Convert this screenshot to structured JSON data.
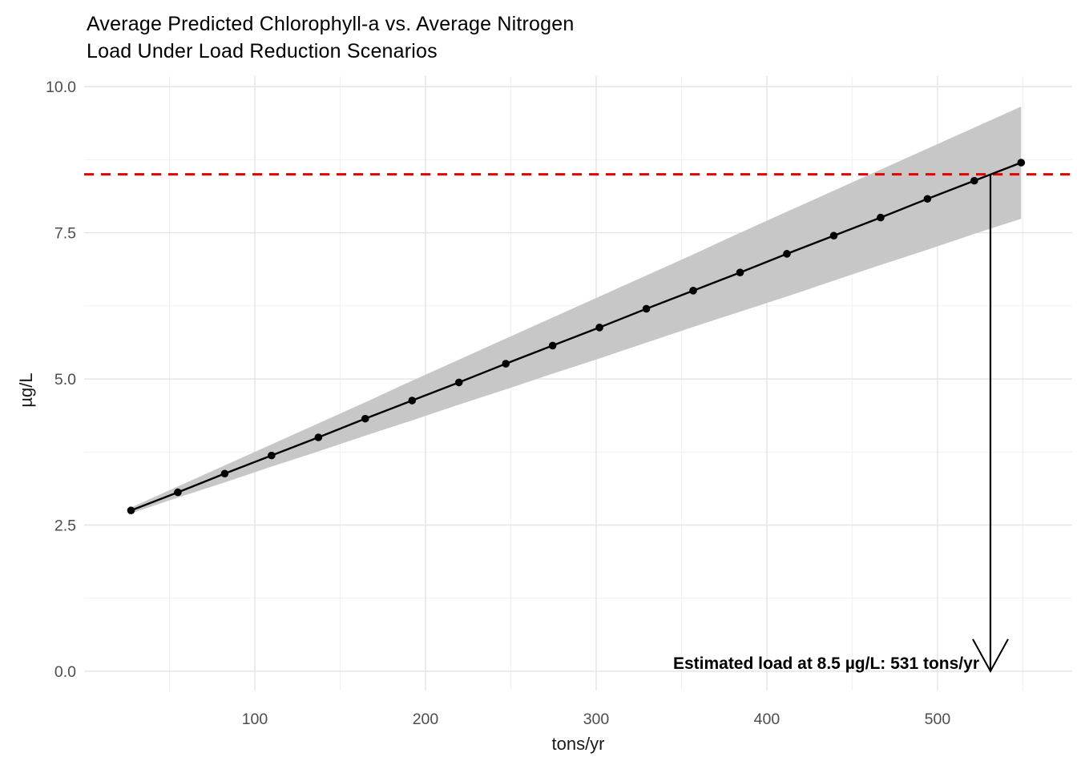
{
  "title": {
    "line1": "Average Predicted Chlorophyll-a vs. Average Nitrogen",
    "line2": "Load Under Load Reduction Scenarios"
  },
  "axes": {
    "x_label": "tons/yr",
    "y_label": "µg/L"
  },
  "annotation": {
    "text": "Estimated load at 8.5 µg/L: 531 tons/yr"
  },
  "colors": {
    "line": "#000000",
    "point": "#000000",
    "ribbon": "#c7c7c7",
    "reference_line": "#e60000",
    "grid_major": "#e4e4e4",
    "grid_minor": "#f1f1f1",
    "tick_text": "#4d4d4d",
    "arrow": "#000000",
    "background": "#ffffff"
  },
  "chart_data": {
    "type": "line",
    "title": "Average Predicted Chlorophyll-a vs. Average Nitrogen Load Under Load Reduction Scenarios",
    "xlabel": "tons/yr",
    "ylabel": "µg/L",
    "xlim": [
      0,
      578.9
    ],
    "ylim": [
      -0.33,
      10.18
    ],
    "grid": true,
    "legend": false,
    "x_major_ticks": [
      100,
      200,
      300,
      400,
      500
    ],
    "x_tick_labels": [
      "100",
      "200",
      "300",
      "400",
      "500"
    ],
    "x_minor_ticks": [
      50,
      150,
      250,
      350,
      450,
      550
    ],
    "y_major_ticks": [
      0.0,
      2.5,
      5.0,
      7.5,
      10.0
    ],
    "y_tick_labels": [
      "0.0",
      "2.5",
      "5.0",
      "7.5",
      "10.0"
    ],
    "y_minor_ticks": [
      1.25,
      3.75,
      6.25,
      8.75
    ],
    "series": [
      {
        "name": "predicted-chlorophyll-a",
        "x": [
          27.45,
          54.9,
          82.35,
          109.8,
          137.25,
          164.7,
          192.15,
          219.6,
          247.05,
          274.5,
          301.95,
          329.4,
          356.85,
          384.3,
          411.75,
          439.2,
          466.65,
          494.1,
          521.55,
          549.0
        ],
        "y": [
          2.75,
          3.06,
          3.38,
          3.69,
          4.0,
          4.32,
          4.63,
          4.94,
          5.26,
          5.57,
          5.88,
          6.2,
          6.51,
          6.82,
          7.14,
          7.45,
          7.76,
          8.08,
          8.39,
          8.7
        ],
        "ci_lower": [
          2.7,
          2.97,
          3.23,
          3.5,
          3.76,
          4.03,
          4.29,
          4.56,
          4.82,
          5.09,
          5.35,
          5.62,
          5.89,
          6.15,
          6.41,
          6.68,
          6.95,
          7.21,
          7.48,
          7.74
        ],
        "ci_upper": [
          2.8,
          3.16,
          3.52,
          3.88,
          4.24,
          4.6,
          4.97,
          5.33,
          5.69,
          6.05,
          6.41,
          6.77,
          7.13,
          7.5,
          7.86,
          8.22,
          8.58,
          8.94,
          9.3,
          9.66
        ]
      }
    ],
    "reference_line": {
      "y": 8.5,
      "style": "dashed"
    },
    "arrow": {
      "x": 531,
      "y_start": 8.5,
      "y_end": 0
    },
    "annotation": {
      "text": "Estimated load at 8.5 µg/L: 531 tons/yr",
      "anchor": "end"
    }
  }
}
